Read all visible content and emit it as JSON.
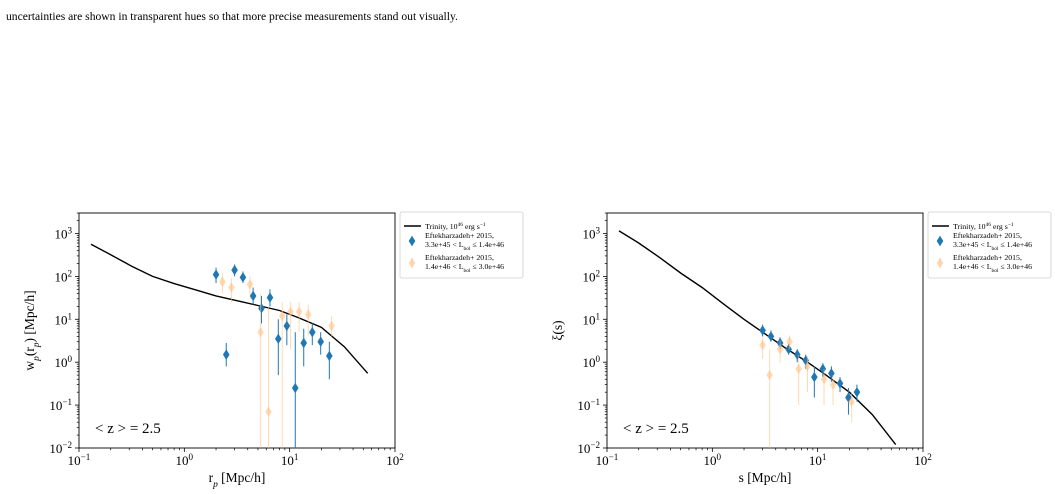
{
  "caption": {
    "lines": [
      "",
      "uncertainties are shown in transparent hues so that more precise measurements stand out visually."
    ]
  },
  "chart_data": [
    {
      "type": "scatter",
      "xscale": "log",
      "yscale": "log",
      "xlim": [
        0.1,
        100
      ],
      "ylim": [
        0.01,
        3000
      ],
      "xlabel": "r_p [Mpc/h]",
      "ylabel": "w_p(r_p) [Mpc/h]",
      "xticks": [
        {
          "v": 0.1,
          "base": "10",
          "exp": "−1"
        },
        {
          "v": 1,
          "base": "10",
          "exp": "0"
        },
        {
          "v": 10,
          "base": "10",
          "exp": "1"
        },
        {
          "v": 100,
          "base": "10",
          "exp": "2"
        }
      ],
      "yticks": [
        {
          "v": 0.01,
          "base": "10",
          "exp": "−2"
        },
        {
          "v": 0.1,
          "base": "10",
          "exp": "−1"
        },
        {
          "v": 1,
          "base": "10",
          "exp": "0"
        },
        {
          "v": 10,
          "base": "10",
          "exp": "1"
        },
        {
          "v": 100,
          "base": "10",
          "exp": "2"
        },
        {
          "v": 1000,
          "base": "10",
          "exp": "3"
        }
      ],
      "annotation": "< z > = 2.5",
      "legend_placement": "outside-right",
      "series": [
        {
          "kind": "line",
          "name": "Trinity, 10^46 erg s^−1",
          "color": "#000000",
          "x": [
            0.13,
            0.2,
            0.32,
            0.5,
            0.8,
            1.3,
            2,
            3.2,
            5,
            8,
            12,
            20,
            33,
            55
          ],
          "y": [
            560,
            320,
            170,
            100,
            68,
            48,
            35,
            27,
            21,
            16,
            11,
            6.5,
            2.3,
            0.55
          ]
        },
        {
          "kind": "points",
          "name": "Eftekharzadeh+ 2015, 3.3e+45 < L_bol ≤ 1.4e+46",
          "color": "#1f77b4",
          "opacity": 1,
          "points": [
            {
              "x": 2.0,
              "y": 110,
              "lo": 70,
              "hi": 160
            },
            {
              "x": 2.5,
              "y": 1.5,
              "lo": 0.8,
              "hi": 2.8
            },
            {
              "x": 3.0,
              "y": 140,
              "lo": 100,
              "hi": 190
            },
            {
              "x": 3.6,
              "y": 95,
              "lo": 70,
              "hi": 130
            },
            {
              "x": 4.5,
              "y": 35,
              "lo": 22,
              "hi": 55
            },
            {
              "x": 5.4,
              "y": 18,
              "lo": 8,
              "hi": 35
            },
            {
              "x": 6.5,
              "y": 32,
              "lo": 20,
              "hi": 50
            },
            {
              "x": 7.8,
              "y": 3.5,
              "lo": 0.5,
              "hi": 10
            },
            {
              "x": 9.4,
              "y": 7,
              "lo": 2.5,
              "hi": 13
            },
            {
              "x": 11.3,
              "y": 0.25,
              "lo": 0.01,
              "hi": 5
            },
            {
              "x": 13.6,
              "y": 2.8,
              "lo": 0.8,
              "hi": 6
            },
            {
              "x": 16.4,
              "y": 5,
              "lo": 2.5,
              "hi": 8
            },
            {
              "x": 19.7,
              "y": 3,
              "lo": 1.5,
              "hi": 5
            },
            {
              "x": 23.8,
              "y": 1.4,
              "lo": 0.4,
              "hi": 3
            }
          ]
        },
        {
          "kind": "points",
          "name": "Eftekharzadeh+ 2015, 1.4e+46 < L_bol ≤ 3.0e+46",
          "color": "#ffbb78",
          "opacity": 0.55,
          "points": [
            {
              "x": 2.3,
              "y": 75,
              "lo": 40,
              "hi": 120
            },
            {
              "x": 2.8,
              "y": 55,
              "lo": 25,
              "hi": 90
            },
            {
              "x": 4.2,
              "y": 65,
              "lo": 30,
              "hi": 100
            },
            {
              "x": 5.3,
              "y": 5,
              "lo": 0.01,
              "hi": 40
            },
            {
              "x": 6.3,
              "y": 0.07,
              "lo": 0.01,
              "hi": 20
            },
            {
              "x": 8.5,
              "y": 12,
              "lo": 0.01,
              "hi": 25
            },
            {
              "x": 10.2,
              "y": 15,
              "lo": 2,
              "hi": 25
            },
            {
              "x": 12.3,
              "y": 15,
              "lo": 5,
              "hi": 25
            },
            {
              "x": 15.0,
              "y": 13,
              "lo": 4,
              "hi": 22
            },
            {
              "x": 25.0,
              "y": 7,
              "lo": 4,
              "hi": 12
            }
          ]
        }
      ]
    },
    {
      "type": "scatter",
      "xscale": "log",
      "yscale": "log",
      "xlim": [
        0.1,
        100
      ],
      "ylim": [
        0.01,
        3000
      ],
      "xlabel": "s [Mpc/h]",
      "ylabel": "ξ(s)",
      "xticks": [
        {
          "v": 0.1,
          "base": "10",
          "exp": "−1"
        },
        {
          "v": 1,
          "base": "10",
          "exp": "0"
        },
        {
          "v": 10,
          "base": "10",
          "exp": "1"
        },
        {
          "v": 100,
          "base": "10",
          "exp": "2"
        }
      ],
      "yticks": [
        {
          "v": 0.01,
          "base": "10",
          "exp": "−2"
        },
        {
          "v": 0.1,
          "base": "10",
          "exp": "−1"
        },
        {
          "v": 1,
          "base": "10",
          "exp": "0"
        },
        {
          "v": 10,
          "base": "10",
          "exp": "1"
        },
        {
          "v": 100,
          "base": "10",
          "exp": "2"
        },
        {
          "v": 1000,
          "base": "10",
          "exp": "3"
        }
      ],
      "annotation": "< z > = 2.5",
      "legend_placement": "outside-right",
      "series": [
        {
          "kind": "line",
          "name": "Trinity, 10^46 erg s^−1",
          "color": "#000000",
          "x": [
            0.13,
            0.2,
            0.32,
            0.5,
            0.8,
            1.3,
            2,
            3.2,
            5,
            8,
            12,
            20,
            33,
            55
          ],
          "y": [
            1150,
            600,
            270,
            120,
            55,
            22,
            10,
            4.5,
            2.1,
            1.0,
            0.5,
            0.2,
            0.06,
            0.012
          ]
        },
        {
          "kind": "points",
          "name": "Eftekharzadeh+ 2015, 3.3e+45 < L_bol ≤ 1.4e+46",
          "color": "#1f77b4",
          "opacity": 1,
          "points": [
            {
              "x": 3.0,
              "y": 5.5,
              "lo": 4,
              "hi": 7.5
            },
            {
              "x": 3.6,
              "y": 4,
              "lo": 3,
              "hi": 5.5
            },
            {
              "x": 4.4,
              "y": 2.8,
              "lo": 2,
              "hi": 3.8
            },
            {
              "x": 5.3,
              "y": 2,
              "lo": 1.5,
              "hi": 2.7
            },
            {
              "x": 6.4,
              "y": 1.5,
              "lo": 1.0,
              "hi": 2.0
            },
            {
              "x": 7.7,
              "y": 1.1,
              "lo": 0.7,
              "hi": 1.5
            },
            {
              "x": 9.3,
              "y": 0.45,
              "lo": 0.15,
              "hi": 0.8
            },
            {
              "x": 11.2,
              "y": 0.7,
              "lo": 0.45,
              "hi": 0.95
            },
            {
              "x": 13.5,
              "y": 0.55,
              "lo": 0.35,
              "hi": 0.8
            },
            {
              "x": 16.3,
              "y": 0.32,
              "lo": 0.2,
              "hi": 0.45
            },
            {
              "x": 19.6,
              "y": 0.15,
              "lo": 0.06,
              "hi": 0.25
            },
            {
              "x": 23.6,
              "y": 0.2,
              "lo": 0.12,
              "hi": 0.3
            }
          ]
        },
        {
          "kind": "points",
          "name": "Eftekharzadeh+ 2015, 1.4e+46 < L_bol ≤ 3.0e+46",
          "color": "#ffbb78",
          "opacity": 0.55,
          "points": [
            {
              "x": 3.0,
              "y": 2.5,
              "lo": 1.2,
              "hi": 4
            },
            {
              "x": 3.5,
              "y": 0.5,
              "lo": 0.01,
              "hi": 2
            },
            {
              "x": 4.4,
              "y": 2,
              "lo": 1,
              "hi": 3.2
            },
            {
              "x": 5.4,
              "y": 3,
              "lo": 2,
              "hi": 4.2
            },
            {
              "x": 6.6,
              "y": 0.7,
              "lo": 0.1,
              "hi": 1.5
            },
            {
              "x": 8.0,
              "y": 0.8,
              "lo": 0.2,
              "hi": 1.4
            },
            {
              "x": 11.5,
              "y": 0.4,
              "lo": 0.1,
              "hi": 0.7
            },
            {
              "x": 14.0,
              "y": 0.3,
              "lo": 0.1,
              "hi": 0.5
            },
            {
              "x": 21.0,
              "y": 0.12,
              "lo": 0.04,
              "hi": 0.2
            }
          ]
        }
      ]
    }
  ]
}
